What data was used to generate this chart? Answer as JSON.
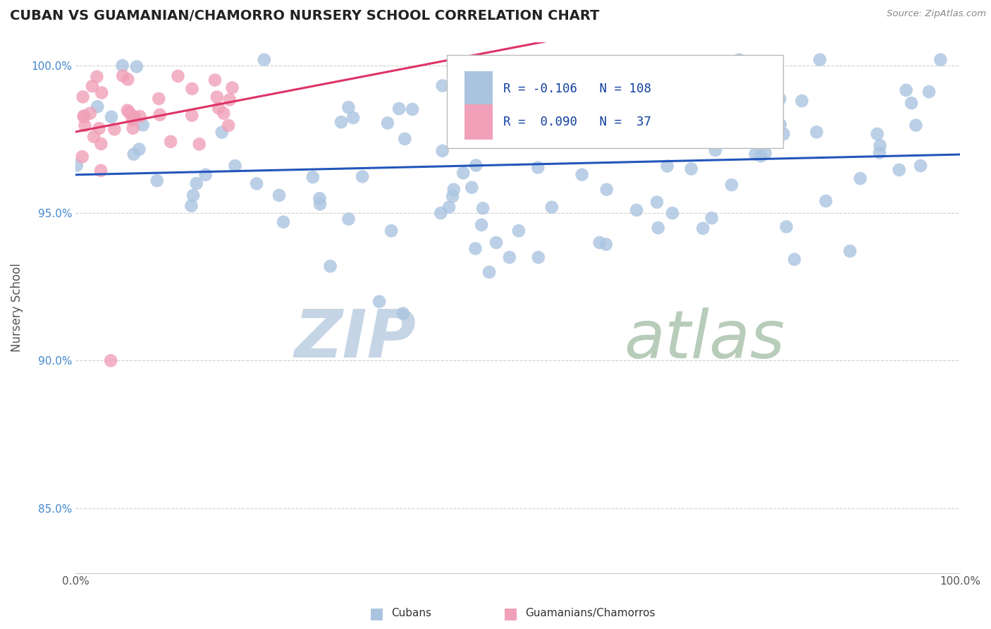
{
  "title": "CUBAN VS GUAMANIAN/CHAMORRO NURSERY SCHOOL CORRELATION CHART",
  "source_text": "Source: ZipAtlas.com",
  "ylabel": "Nursery School",
  "xmin": 0.0,
  "xmax": 1.0,
  "ymin": 0.828,
  "ymax": 1.008,
  "yticks": [
    0.85,
    0.9,
    0.95,
    1.0
  ],
  "ytick_labels": [
    "85.0%",
    "90.0%",
    "95.0%",
    "100.0%"
  ],
  "blue_R": -0.106,
  "blue_N": 108,
  "pink_R": 0.09,
  "pink_N": 37,
  "blue_color": "#aac4e0",
  "pink_color": "#f0a0b8",
  "blue_line_color": "#2255bb",
  "pink_line_color": "#dd3366",
  "legend_R_color": "#1040a0",
  "watermark_zip": "ZIP",
  "watermark_atlas": "atlas",
  "watermark_color_zip": "#c5d5e5",
  "watermark_color_atlas": "#b8ccba",
  "grid_color": "#d0d0d0",
  "title_color": "#222222",
  "source_color": "#888888",
  "ylabel_color": "#555555",
  "tick_color": "#4488cc"
}
